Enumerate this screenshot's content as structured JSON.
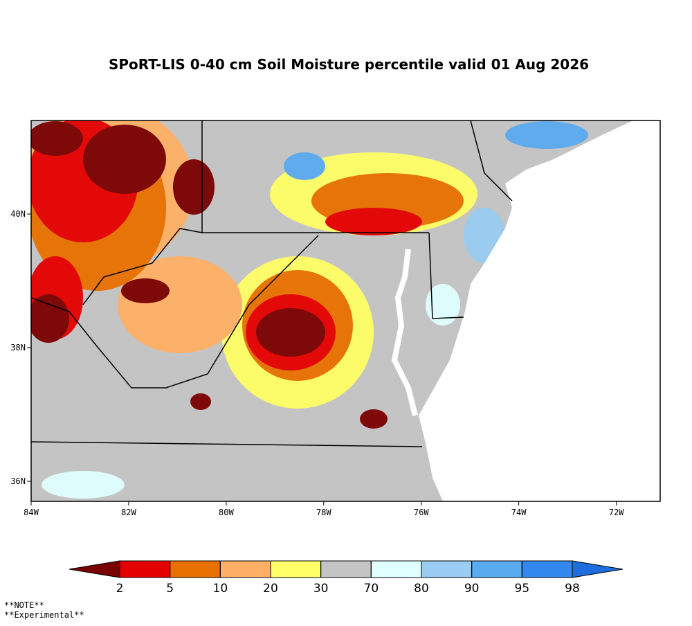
{
  "title": "SPoRT-LIS 0-40 cm Soil Moisture percentile valid 01 Aug 2026",
  "map": {
    "xlim": [
      -84,
      -71.1
    ],
    "ylim": [
      35.7,
      41.4
    ],
    "xticks": [
      {
        "value": -84,
        "label": "84W"
      },
      {
        "value": -82,
        "label": "82W"
      },
      {
        "value": -80,
        "label": "80W"
      },
      {
        "value": -78,
        "label": "78W"
      },
      {
        "value": -76,
        "label": "76W"
      },
      {
        "value": -74,
        "label": "74W"
      },
      {
        "value": -72,
        "label": "72W"
      }
    ],
    "yticks": [
      {
        "value": 36,
        "label": "36N"
      },
      {
        "value": 38,
        "label": "38N"
      },
      {
        "value": 40,
        "label": "40N"
      }
    ]
  },
  "colorbar": {
    "levels": [
      2,
      5,
      10,
      20,
      30,
      70,
      80,
      90,
      95,
      98
    ],
    "colors": [
      "#7a0000",
      "#e50000",
      "#e87000",
      "#ffb066",
      "#ffff66",
      "#c4c4c4",
      "#e0ffff",
      "#99ccf2",
      "#5aaaf0",
      "#3388ee",
      "#1e6ee0"
    ]
  },
  "notes": [
    "**NOTE**",
    "**Experimental**"
  ]
}
